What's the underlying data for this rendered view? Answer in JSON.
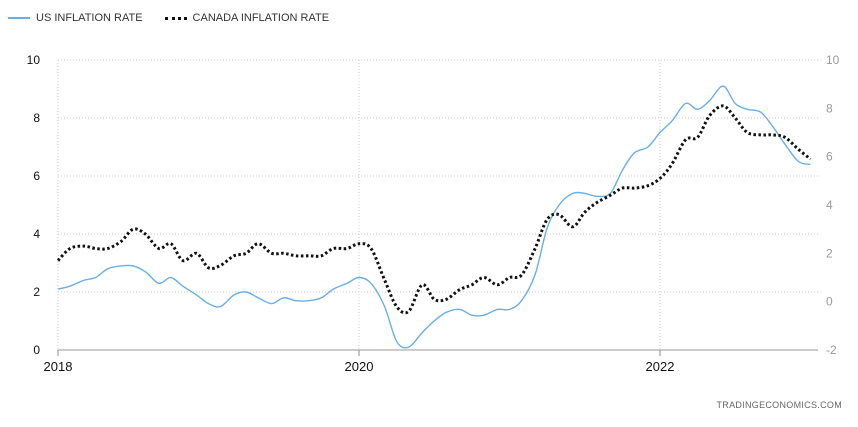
{
  "legend": {
    "us": "US INFLATION RATE",
    "canada": "CANADA INFLATION RATE"
  },
  "source": "TRADINGECONOMICS.COM",
  "colors": {
    "us": "#6aaee8",
    "canada": "#111111",
    "grid": "#cccccc"
  },
  "chart_data": {
    "type": "line",
    "title": "",
    "xlabel": "",
    "ylabel": "",
    "x_ticks": [
      "2018",
      "2020",
      "2022"
    ],
    "x_tick_values": [
      2018.0,
      2020.0,
      2022.0
    ],
    "xlim": [
      2018.0,
      2023.05
    ],
    "y_left": {
      "ticks": [
        "0",
        "2",
        "4",
        "6",
        "8",
        "10"
      ],
      "lim": [
        0,
        10
      ]
    },
    "y_right": {
      "ticks": [
        "-2",
        "0",
        "2",
        "4",
        "6",
        "8",
        "10"
      ],
      "lim": [
        -2,
        10
      ]
    },
    "grid": true,
    "series": [
      {
        "name": "US INFLATION RATE",
        "axis": "left",
        "style": "solid",
        "x": [
          2018.0,
          2018.08,
          2018.17,
          2018.25,
          2018.33,
          2018.42,
          2018.5,
          2018.58,
          2018.67,
          2018.75,
          2018.83,
          2018.92,
          2019.0,
          2019.08,
          2019.17,
          2019.25,
          2019.33,
          2019.42,
          2019.5,
          2019.58,
          2019.67,
          2019.75,
          2019.83,
          2019.92,
          2020.0,
          2020.08,
          2020.17,
          2020.25,
          2020.33,
          2020.42,
          2020.5,
          2020.58,
          2020.67,
          2020.75,
          2020.83,
          2020.92,
          2021.0,
          2021.08,
          2021.17,
          2021.25,
          2021.33,
          2021.42,
          2021.5,
          2021.58,
          2021.67,
          2021.75,
          2021.83,
          2021.92,
          2022.0,
          2022.08,
          2022.17,
          2022.25,
          2022.33,
          2022.42,
          2022.5,
          2022.58,
          2022.67,
          2022.75,
          2022.83,
          2022.92,
          2023.0
        ],
        "values": [
          2.1,
          2.2,
          2.4,
          2.5,
          2.8,
          2.9,
          2.9,
          2.7,
          2.3,
          2.5,
          2.2,
          1.9,
          1.6,
          1.5,
          1.9,
          2.0,
          1.8,
          1.6,
          1.8,
          1.7,
          1.7,
          1.8,
          2.1,
          2.3,
          2.5,
          2.3,
          1.5,
          0.3,
          0.1,
          0.6,
          1.0,
          1.3,
          1.4,
          1.2,
          1.2,
          1.4,
          1.4,
          1.7,
          2.6,
          4.2,
          5.0,
          5.4,
          5.4,
          5.3,
          5.4,
          6.2,
          6.8,
          7.0,
          7.5,
          7.9,
          8.5,
          8.3,
          8.6,
          9.1,
          8.5,
          8.3,
          8.2,
          7.7,
          7.1,
          6.5,
          6.4
        ]
      },
      {
        "name": "CANADA INFLATION RATE",
        "axis": "right",
        "style": "dotted",
        "x": [
          2018.0,
          2018.08,
          2018.17,
          2018.25,
          2018.33,
          2018.42,
          2018.5,
          2018.58,
          2018.67,
          2018.75,
          2018.83,
          2018.92,
          2019.0,
          2019.08,
          2019.17,
          2019.25,
          2019.33,
          2019.42,
          2019.5,
          2019.58,
          2019.67,
          2019.75,
          2019.83,
          2019.92,
          2020.0,
          2020.08,
          2020.17,
          2020.25,
          2020.33,
          2020.42,
          2020.5,
          2020.58,
          2020.67,
          2020.75,
          2020.83,
          2020.92,
          2021.0,
          2021.08,
          2021.17,
          2021.25,
          2021.33,
          2021.42,
          2021.5,
          2021.58,
          2021.67,
          2021.75,
          2021.83,
          2021.92,
          2022.0,
          2022.08,
          2022.17,
          2022.25,
          2022.33,
          2022.42,
          2022.5,
          2022.58,
          2022.67,
          2022.75,
          2022.83,
          2022.92,
          2023.0
        ],
        "values": [
          1.7,
          2.2,
          2.3,
          2.2,
          2.2,
          2.5,
          3.0,
          2.8,
          2.2,
          2.4,
          1.7,
          2.0,
          1.4,
          1.5,
          1.9,
          2.0,
          2.4,
          2.0,
          2.0,
          1.9,
          1.9,
          1.9,
          2.2,
          2.2,
          2.4,
          2.2,
          0.9,
          -0.2,
          -0.4,
          0.7,
          0.1,
          0.1,
          0.5,
          0.7,
          1.0,
          0.7,
          1.0,
          1.1,
          2.2,
          3.4,
          3.6,
          3.1,
          3.7,
          4.1,
          4.4,
          4.7,
          4.7,
          4.8,
          5.1,
          5.7,
          6.7,
          6.8,
          7.7,
          8.1,
          7.6,
          7.0,
          6.9,
          6.9,
          6.8,
          6.3,
          5.9
        ]
      }
    ]
  }
}
